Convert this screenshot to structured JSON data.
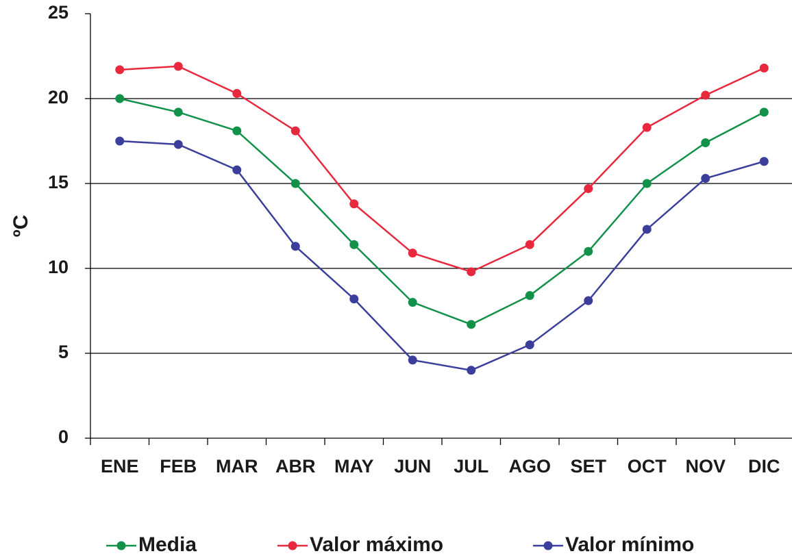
{
  "chart_data": {
    "type": "line",
    "y_label": "ºC",
    "categories": [
      "ENE",
      "FEB",
      "MAR",
      "ABR",
      "MAY",
      "JUN",
      "JUL",
      "AGO",
      "SET",
      "OCT",
      "NOV",
      "DIC"
    ],
    "series": [
      {
        "name": "Media",
        "color": "#12914a",
        "values": [
          20.0,
          19.2,
          18.1,
          15.0,
          11.4,
          8.0,
          6.7,
          8.4,
          11.0,
          15.0,
          17.4,
          19.2
        ]
      },
      {
        "name": "Valor máximo",
        "color": "#e8283c",
        "values": [
          21.7,
          21.9,
          20.3,
          18.1,
          13.8,
          10.9,
          9.8,
          11.4,
          14.7,
          18.3,
          20.2,
          21.8
        ]
      },
      {
        "name": "Valor mínimo",
        "color": "#3b3f9b",
        "values": [
          17.5,
          17.3,
          15.8,
          11.3,
          8.2,
          4.6,
          4.0,
          5.5,
          8.1,
          12.3,
          15.3,
          16.3
        ]
      }
    ],
    "ylim": [
      0,
      25
    ],
    "yticks": [
      0,
      5,
      10,
      15,
      20,
      25
    ],
    "grid": true,
    "legend": "bottom"
  }
}
